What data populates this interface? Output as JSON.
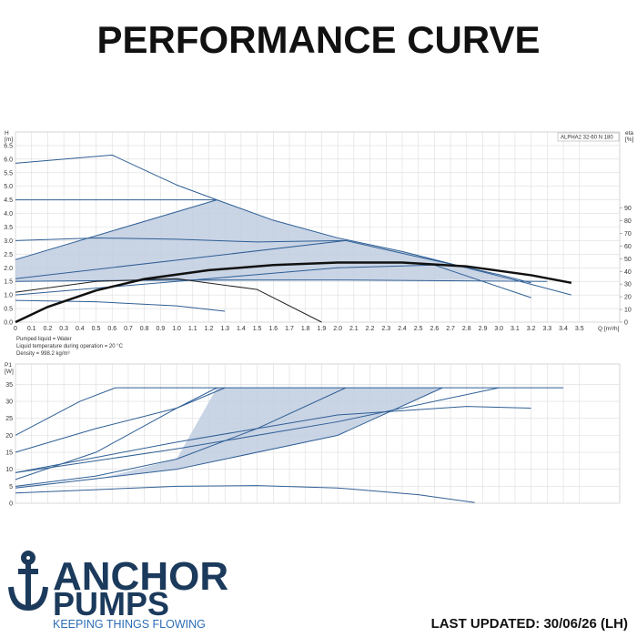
{
  "title": "PERFORMANCE CURVE",
  "notes": [
    "Pumped liquid = Water",
    "Liquid temperature during operation = 20 °C",
    "Density = 998.2 kg/m³"
  ],
  "brand": {
    "line1": "ANCHOR",
    "line2": "PUMPS",
    "tagline": "KEEPING THINGS FLOWING"
  },
  "last_updated": "LAST UPDATED: 30/06/26 (LH)",
  "chart_data": [
    {
      "type": "line",
      "label": "ALPHA2 32-60 N 180",
      "ylabel": [
        "H",
        "[m]"
      ],
      "y2label": [
        "eta",
        "[%]"
      ],
      "xlabel": "Q [m³/h]",
      "grid": true,
      "show_xtick_labels": true,
      "xlim": [
        0,
        3.75
      ],
      "ylim": [
        0,
        7
      ],
      "y2lim": [
        0,
        150
      ],
      "xticks": [
        0,
        0.1,
        0.2,
        0.3,
        0.4,
        0.5,
        0.6,
        0.7,
        0.8,
        0.9,
        {
          "value": 1,
          "label": "1.0"
        },
        1.1,
        1.2,
        1.3,
        1.4,
        1.5,
        1.6,
        1.7,
        1.8,
        1.9,
        {
          "value": 2,
          "label": "2.0"
        },
        2.1,
        2.2,
        2.3,
        2.4,
        2.5,
        2.6,
        2.7,
        2.8,
        2.9,
        {
          "value": 3,
          "label": "3.0"
        },
        3.1,
        3.2,
        3.3,
        3.4,
        3.5
      ],
      "yticks": [
        {
          "value": 0,
          "label": "0.0"
        },
        0.5,
        {
          "value": 1,
          "label": "1.0"
        },
        1.5,
        {
          "value": 2,
          "label": "2.0"
        },
        2.5,
        {
          "value": 3,
          "label": "3.0"
        },
        3.5,
        {
          "value": 4,
          "label": "4.0"
        },
        4.5,
        {
          "value": 5,
          "label": "5.0"
        },
        5.5,
        {
          "value": 6,
          "label": "6.0"
        },
        6.5
      ],
      "y2ticks": [
        0,
        10,
        20,
        30,
        40,
        50,
        60,
        70,
        80,
        90
      ],
      "series": [
        {
          "color": "#bfcde0",
          "fill": true,
          "x": [
            0,
            1.25,
            1.6,
            2.0,
            2.4,
            2.8,
            3.1,
            2.0,
            1.0,
            0
          ],
          "values": [
            2.3,
            4.5,
            3.75,
            3.1,
            2.6,
            2.0,
            1.55,
            1.55,
            1.5,
            1.5
          ]
        },
        {
          "color": "#2f5f95",
          "x": [
            0,
            0.3,
            0.6,
            0.8,
            1.0,
            1.25,
            1.6,
            2.0,
            2.4,
            2.8,
            3.1,
            3.45
          ],
          "values": [
            5.85,
            6.0,
            6.15,
            5.6,
            5.05,
            4.5,
            3.75,
            3.1,
            2.6,
            2.0,
            1.55,
            1.0
          ]
        },
        {
          "color": "#2f5f95",
          "x": [
            0,
            1.25
          ],
          "values": [
            4.5,
            4.5
          ]
        },
        {
          "color": "#2f5f95",
          "x": [
            0,
            1.25
          ],
          "values": [
            2.3,
            4.5
          ]
        },
        {
          "color": "#2f5f95",
          "x": [
            0,
            0.5,
            1.0,
            1.5,
            2.05,
            2.5,
            3.0,
            3.2
          ],
          "values": [
            3.0,
            3.1,
            3.05,
            2.95,
            3.0,
            2.4,
            1.75,
            1.45
          ]
        },
        {
          "color": "#2f5f95",
          "x": [
            0,
            2.05
          ],
          "values": [
            1.6,
            3.0
          ]
        },
        {
          "color": "#2f5f95",
          "x": [
            0,
            1.0,
            2.0,
            3.3
          ],
          "values": [
            1.5,
            1.55,
            1.55,
            1.5
          ]
        },
        {
          "color": "#2f5f95",
          "x": [
            0,
            1.0,
            2.0,
            2.6,
            3.2
          ],
          "values": [
            1.0,
            1.5,
            2.0,
            2.1,
            0.9
          ]
        },
        {
          "color": "#2f5f95",
          "x": [
            0,
            0.5,
            1.0,
            1.3
          ],
          "values": [
            0.8,
            0.75,
            0.6,
            0.4
          ]
        },
        {
          "color": "#222222",
          "x": [
            0,
            0.5,
            1.0,
            1.5,
            1.9
          ],
          "values": [
            1.1,
            1.5,
            1.6,
            1.2,
            0
          ]
        },
        {
          "color": "#111111",
          "axis": "y2",
          "width": 2.5,
          "x": [
            0,
            0.2,
            0.5,
            0.8,
            1.2,
            1.6,
            2.0,
            2.4,
            2.8,
            3.2,
            3.45
          ],
          "values": [
            0,
            12,
            25,
            34,
            41,
            45,
            47,
            47,
            44,
            37,
            31
          ]
        }
      ]
    },
    {
      "type": "line",
      "ylabel": [
        "P1",
        "[W]"
      ],
      "grid": true,
      "show_xtick_labels": false,
      "xlim": [
        0,
        3.75
      ],
      "ylim": [
        0,
        41
      ],
      "xticks": [
        0,
        0.1,
        0.2,
        0.3,
        0.4,
        0.5,
        0.6,
        0.7,
        0.8,
        0.9,
        1,
        1.1,
        1.2,
        1.3,
        1.4,
        1.5,
        1.6,
        1.7,
        1.8,
        1.9,
        2,
        2.1,
        2.2,
        2.3,
        2.4,
        2.5,
        2.6,
        2.7,
        2.8,
        2.9,
        3,
        3.1,
        3.2,
        3.3,
        3.4,
        3.5
      ],
      "yticks": [
        0,
        5,
        10,
        15,
        20,
        25,
        30,
        35
      ],
      "series": [
        {
          "color": "#bfcde0",
          "fill": true,
          "x": [
            0,
            0.5,
            1.0,
            1.25,
            2.65,
            2.0,
            1.0,
            0
          ],
          "values": [
            5,
            7,
            13,
            34,
            34,
            20,
            10,
            4.5
          ]
        },
        {
          "color": "#2f5f95",
          "x": [
            0,
            0.2,
            0.4,
            0.62,
            3.4
          ],
          "values": [
            20,
            25,
            30,
            34,
            34
          ]
        },
        {
          "color": "#2f5f95",
          "x": [
            0,
            0.5,
            1.0,
            1.3
          ],
          "values": [
            15,
            22,
            28,
            34
          ]
        },
        {
          "color": "#2f5f95",
          "x": [
            0,
            0.5,
            1.0,
            1.25
          ],
          "values": [
            7,
            15,
            28,
            34
          ]
        },
        {
          "color": "#2f5f95",
          "x": [
            0,
            0.5,
            1.0,
            1.5,
            2.05
          ],
          "values": [
            5,
            8,
            13,
            22,
            34
          ]
        },
        {
          "color": "#2f5f95",
          "x": [
            0,
            1.0,
            2.0,
            2.65
          ],
          "values": [
            4.5,
            10,
            20,
            34
          ]
        },
        {
          "color": "#2f5f95",
          "x": [
            0,
            1.0,
            2.0,
            3.0
          ],
          "values": [
            9,
            16,
            24,
            34
          ]
        },
        {
          "color": "#2f5f95",
          "x": [
            0,
            1.0,
            2.0,
            2.8,
            3.2
          ],
          "values": [
            9,
            18,
            26,
            28.5,
            28
          ]
        },
        {
          "color": "#2f5f95",
          "x": [
            0,
            0.5,
            1.0,
            1.5,
            2.0,
            2.5,
            2.85
          ],
          "values": [
            3,
            4,
            5,
            5.2,
            4.5,
            2.5,
            0.2
          ]
        }
      ]
    }
  ]
}
